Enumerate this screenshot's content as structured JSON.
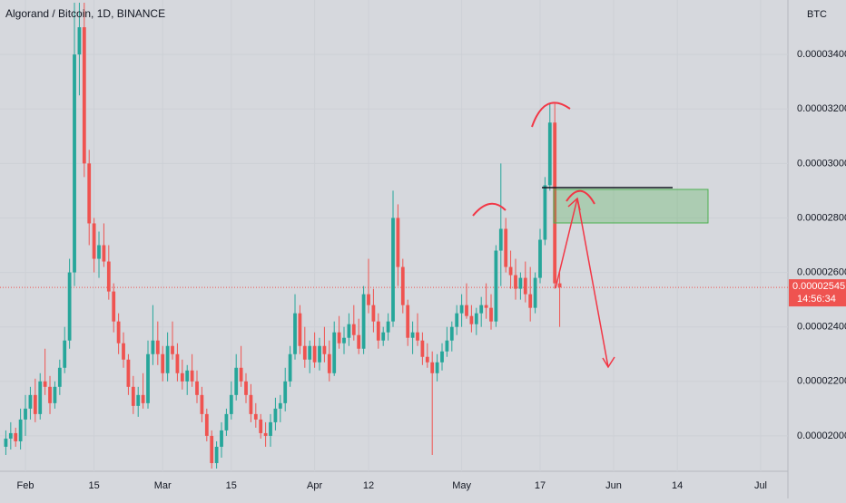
{
  "chart_data": {
    "type": "candlestick",
    "title": "Algorand / Bitcoin, 1D, BINANCE",
    "currency": "BTC",
    "up_color": "#26a69a",
    "down_color": "#ef5350",
    "xlim": [
      -5.19,
      155.56
    ],
    "xticks": [
      {
        "value": 0,
        "label": "Feb"
      },
      {
        "value": 14,
        "label": "15"
      },
      {
        "value": 28,
        "label": "Mar"
      },
      {
        "value": 42,
        "label": "15"
      },
      {
        "value": 59,
        "label": "Apr"
      },
      {
        "value": 70,
        "label": "12"
      },
      {
        "value": 89,
        "label": "May"
      },
      {
        "value": 105,
        "label": "17"
      },
      {
        "value": 120,
        "label": "Jun"
      },
      {
        "value": 133,
        "label": "14"
      },
      {
        "value": 150,
        "label": "Jul"
      }
    ],
    "ylim": [
      1.87e-05,
      3.6e-05
    ],
    "yticks": [
      {
        "value": 2e-05,
        "label": "0.00002000"
      },
      {
        "value": 2.2e-05,
        "label": "0.00002200"
      },
      {
        "value": 2.4e-05,
        "label": "0.00002400"
      },
      {
        "value": 2.6e-05,
        "label": "0.00002600"
      },
      {
        "value": 2.8e-05,
        "label": "0.00002800"
      },
      {
        "value": 3e-05,
        "label": "0.00003000"
      },
      {
        "value": 3.2e-05,
        "label": "0.00003200"
      },
      {
        "value": 3.4e-05,
        "label": "0.00003400"
      }
    ],
    "last_price": 2.545e-05,
    "countdown": "14:56:34",
    "x": [
      -4,
      -3,
      -2,
      -1,
      0,
      1,
      2,
      3,
      4,
      5,
      6,
      7,
      8,
      9,
      10,
      11,
      12,
      13,
      14,
      15,
      16,
      17,
      18,
      19,
      20,
      21,
      22,
      23,
      24,
      25,
      26,
      27,
      28,
      29,
      30,
      31,
      32,
      33,
      34,
      35,
      36,
      37,
      38,
      39,
      40,
      41,
      42,
      43,
      44,
      45,
      46,
      47,
      48,
      49,
      50,
      51,
      52,
      53,
      54,
      55,
      56,
      57,
      58,
      59,
      60,
      61,
      62,
      63,
      64,
      65,
      66,
      67,
      68,
      69,
      70,
      71,
      72,
      73,
      74,
      75,
      76,
      77,
      78,
      79,
      80,
      81,
      82,
      83,
      84,
      85,
      86,
      87,
      88,
      89,
      90,
      91,
      92,
      93,
      94,
      95,
      96,
      97,
      98,
      99,
      100,
      101,
      102,
      103,
      104,
      105,
      106,
      107,
      108,
      109
    ],
    "open": [
      1.96e-05,
      1.99e-05,
      2.01e-05,
      1.98e-05,
      2.06e-05,
      2.1e-05,
      2.15e-05,
      2.08e-05,
      2.2e-05,
      2.18e-05,
      2.12e-05,
      2.18e-05,
      2.25e-05,
      2.35e-05,
      2.6e-05,
      3.4e-05,
      3.5e-05,
      3e-05,
      2.78e-05,
      2.65e-05,
      2.7e-05,
      2.64e-05,
      2.53e-05,
      2.42e-05,
      2.34e-05,
      2.28e-05,
      2.18e-05,
      2.11e-05,
      2.15e-05,
      2.12e-05,
      2.3e-05,
      2.35e-05,
      2.3e-05,
      2.23e-05,
      2.33e-05,
      2.3e-05,
      2.23e-05,
      2.2e-05,
      2.24e-05,
      2.2e-05,
      2.15e-05,
      2.08e-05,
      2e-05,
      1.9e-05,
      1.96e-05,
      2.02e-05,
      2.08e-05,
      2.15e-05,
      2.25e-05,
      2.2e-05,
      2.15e-05,
      2.08e-05,
      2.06e-05,
      2.01e-05,
      2e-05,
      2.05e-05,
      2.1e-05,
      2.12e-05,
      2.2e-05,
      2.3e-05,
      2.45e-05,
      2.33e-05,
      2.28e-05,
      2.33e-05,
      2.27e-05,
      2.33e-05,
      2.3e-05,
      2.23e-05,
      2.38e-05,
      2.34e-05,
      2.36e-05,
      2.41e-05,
      2.37e-05,
      2.32e-05,
      2.52e-05,
      2.48e-05,
      2.42e-05,
      2.35e-05,
      2.38e-05,
      2.42e-05,
      2.8e-05,
      2.62e-05,
      2.48e-05,
      2.36e-05,
      2.38e-05,
      2.35e-05,
      2.29e-05,
      2.27e-05,
      2.23e-05,
      2.27e-05,
      2.31e-05,
      2.35e-05,
      2.4e-05,
      2.45e-05,
      2.48e-05,
      2.44e-05,
      2.41e-05,
      2.45e-05,
      2.48e-05,
      2.47e-05,
      2.42e-05,
      2.68e-05,
      2.76e-05,
      2.62e-05,
      2.59e-05,
      2.54e-05,
      2.58e-05,
      2.52e-05,
      2.47e-05,
      2.58e-05,
      2.72e-05,
      2.92e-05,
      3.15e-05,
      2.56e-05
    ],
    "high": [
      2.02e-05,
      2.05e-05,
      2.03e-05,
      2.1e-05,
      2.15e-05,
      2.18e-05,
      2.21e-05,
      2.23e-05,
      2.32e-05,
      2.22e-05,
      2.2e-05,
      2.28e-05,
      2.4e-05,
      2.65e-05,
      3.59e-05,
      3.59e-05,
      3.59e-05,
      3.05e-05,
      2.8e-05,
      2.75e-05,
      2.78e-05,
      2.7e-05,
      2.56e-05,
      2.45e-05,
      2.38e-05,
      2.3e-05,
      2.22e-05,
      2.18e-05,
      2.23e-05,
      2.35e-05,
      2.48e-05,
      2.42e-05,
      2.33e-05,
      2.38e-05,
      2.42e-05,
      2.34e-05,
      2.28e-05,
      2.26e-05,
      2.3e-05,
      2.24e-05,
      2.18e-05,
      2.1e-05,
      2.02e-05,
      1.98e-05,
      2.05e-05,
      2.1e-05,
      2.2e-05,
      2.3e-05,
      2.33e-05,
      2.23e-05,
      2.19e-05,
      2.12e-05,
      2.08e-05,
      2.05e-05,
      2.08e-05,
      2.14e-05,
      2.15e-05,
      2.25e-05,
      2.33e-05,
      2.52e-05,
      2.48e-05,
      2.4e-05,
      2.35e-05,
      2.38e-05,
      2.36e-05,
      2.4e-05,
      2.35e-05,
      2.42e-05,
      2.44e-05,
      2.4e-05,
      2.45e-05,
      2.48e-05,
      2.43e-05,
      2.55e-05,
      2.65e-05,
      2.54e-05,
      2.45e-05,
      2.4e-05,
      2.45e-05,
      2.9e-05,
      2.85e-05,
      2.65e-05,
      2.5e-05,
      2.42e-05,
      2.45e-05,
      2.38e-05,
      2.34e-05,
      2.31e-05,
      2.3e-05,
      2.34e-05,
      2.4e-05,
      2.42e-05,
      2.48e-05,
      2.52e-05,
      2.56e-05,
      2.48e-05,
      2.47e-05,
      2.51e-05,
      2.56e-05,
      2.52e-05,
      2.7e-05,
      3e-05,
      2.8e-05,
      2.68e-05,
      2.65e-05,
      2.6e-05,
      2.64e-05,
      2.62e-05,
      2.6e-05,
      2.76e-05,
      2.95e-05,
      3.22e-05,
      3.22e-05,
      2.6e-05
    ],
    "low": [
      1.93e-05,
      1.95e-05,
      1.96e-05,
      1.95e-05,
      2e-05,
      2.06e-05,
      2.05e-05,
      2.06e-05,
      2.15e-05,
      2.08e-05,
      2.1e-05,
      2.15e-05,
      2.23e-05,
      2.32e-05,
      2.55e-05,
      3.25e-05,
      2.95e-05,
      2.7e-05,
      2.6e-05,
      2.58e-05,
      2.62e-05,
      2.5e-05,
      2.38e-05,
      2.3e-05,
      2.25e-05,
      2.15e-05,
      2.08e-05,
      2.07e-05,
      2.1e-05,
      2.1e-05,
      2.26e-05,
      2.26e-05,
      2.2e-05,
      2.2e-05,
      2.28e-05,
      2.2e-05,
      2.17e-05,
      2.15e-05,
      2.18e-05,
      2.12e-05,
      2.05e-05,
      1.98e-05,
      1.88e-05,
      1.88e-05,
      1.92e-05,
      2e-05,
      2.06e-05,
      2.13e-05,
      2.18e-05,
      2.12e-05,
      2.05e-05,
      2.03e-05,
      1.99e-05,
      1.96e-05,
      1.96e-05,
      2.02e-05,
      2.05e-05,
      2.09e-05,
      2.18e-05,
      2.28e-05,
      2.3e-05,
      2.25e-05,
      2.23e-05,
      2.25e-05,
      2.24e-05,
      2.27e-05,
      2.2e-05,
      2.22e-05,
      2.32e-05,
      2.3e-05,
      2.33e-05,
      2.35e-05,
      2.3e-05,
      2.3e-05,
      2.45e-05,
      2.38e-05,
      2.32e-05,
      2.33e-05,
      2.35e-05,
      2.4e-05,
      2.55e-05,
      2.45e-05,
      2.33e-05,
      2.3e-05,
      2.33e-05,
      2.26e-05,
      2.25e-05,
      1.93e-05,
      2.2e-05,
      2.24e-05,
      2.29e-05,
      2.31e-05,
      2.37e-05,
      2.4e-05,
      2.43e-05,
      2.38e-05,
      2.37e-05,
      2.4e-05,
      2.43e-05,
      2.39e-05,
      2.4e-05,
      2.55e-05,
      2.6e-05,
      2.54e-05,
      2.5e-05,
      2.5e-05,
      2.49e-05,
      2.42e-05,
      2.45e-05,
      2.56e-05,
      2.7e-05,
      2.9e-05,
      2.54e-05,
      2.4e-05
    ],
    "close": [
      1.99e-05,
      2.01e-05,
      1.98e-05,
      2.06e-05,
      2.1e-05,
      2.15e-05,
      2.08e-05,
      2.2e-05,
      2.18e-05,
      2.12e-05,
      2.18e-05,
      2.25e-05,
      2.35e-05,
      2.6e-05,
      3.4e-05,
      3.5e-05,
      3e-05,
      2.78e-05,
      2.65e-05,
      2.7e-05,
      2.64e-05,
      2.53e-05,
      2.42e-05,
      2.34e-05,
      2.28e-05,
      2.18e-05,
      2.11e-05,
      2.15e-05,
      2.12e-05,
      2.3e-05,
      2.35e-05,
      2.3e-05,
      2.23e-05,
      2.33e-05,
      2.3e-05,
      2.23e-05,
      2.2e-05,
      2.24e-05,
      2.2e-05,
      2.15e-05,
      2.08e-05,
      2e-05,
      1.9e-05,
      1.96e-05,
      2.02e-05,
      2.08e-05,
      2.15e-05,
      2.25e-05,
      2.2e-05,
      2.15e-05,
      2.08e-05,
      2.06e-05,
      2.01e-05,
      2e-05,
      2.05e-05,
      2.1e-05,
      2.12e-05,
      2.2e-05,
      2.3e-05,
      2.45e-05,
      2.33e-05,
      2.28e-05,
      2.33e-05,
      2.27e-05,
      2.33e-05,
      2.3e-05,
      2.23e-05,
      2.38e-05,
      2.34e-05,
      2.36e-05,
      2.41e-05,
      2.37e-05,
      2.32e-05,
      2.52e-05,
      2.48e-05,
      2.42e-05,
      2.35e-05,
      2.38e-05,
      2.42e-05,
      2.8e-05,
      2.62e-05,
      2.48e-05,
      2.36e-05,
      2.38e-05,
      2.35e-05,
      2.29e-05,
      2.27e-05,
      2.23e-05,
      2.27e-05,
      2.31e-05,
      2.35e-05,
      2.4e-05,
      2.45e-05,
      2.48e-05,
      2.44e-05,
      2.41e-05,
      2.45e-05,
      2.48e-05,
      2.47e-05,
      2.42e-05,
      2.68e-05,
      2.76e-05,
      2.62e-05,
      2.59e-05,
      2.54e-05,
      2.58e-05,
      2.52e-05,
      2.47e-05,
      2.58e-05,
      2.72e-05,
      2.92e-05,
      3.15e-05,
      2.56e-05,
      2.545e-05
    ]
  }
}
